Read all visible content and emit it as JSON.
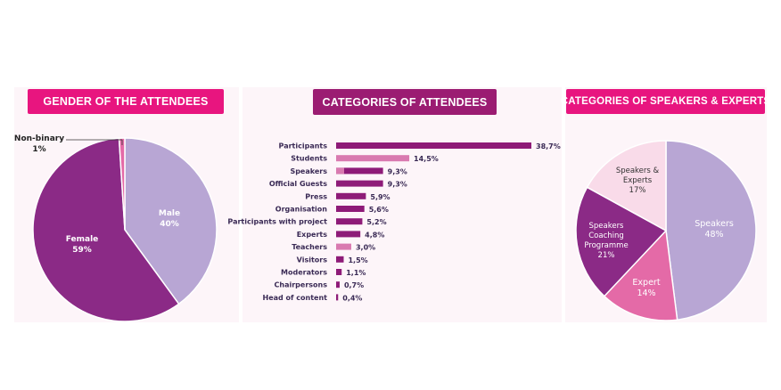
{
  "colors": {
    "pink": "#e8157f",
    "purple": "#9b1c72",
    "dark_purple": "#8b2a86",
    "lavender": "#b8a6d4",
    "light_pink": "#f9dbe9",
    "mid_pink": "#e46aa7",
    "bar_purple": "#8e1b78",
    "bar_pink": "#d97ab0"
  },
  "chart_data": [
    {
      "type": "pie",
      "title": "GENDER OF THE ATTENDEES",
      "slices": [
        {
          "label": "Male",
          "value": 40,
          "display": "40%",
          "color": "#b8a6d4"
        },
        {
          "label": "Female",
          "value": 59,
          "display": "59%",
          "color": "#8b2a86"
        },
        {
          "label": "Non-binary",
          "value": 1,
          "display": "1%",
          "color": "#e46aa7"
        }
      ]
    },
    {
      "type": "bar",
      "orientation": "horizontal",
      "title": "CATEGORIES OF ATTENDEES",
      "categories": [
        "Participants",
        "Students",
        "Speakers",
        "Official Guests",
        "Press",
        "Organisation",
        "Participants with project",
        "Experts",
        "Teachers",
        "Visitors",
        "Moderators",
        "Chairpersons",
        "Head of content"
      ],
      "values": [
        38.7,
        14.5,
        9.3,
        9.3,
        5.9,
        5.6,
        5.2,
        4.8,
        3.0,
        1.5,
        1.1,
        0.7,
        0.4
      ],
      "value_labels": [
        "38,7%",
        "14,5%",
        "9,3%",
        "9,3%",
        "5,9%",
        "5,6%",
        "5,2%",
        "4,8%",
        "3,0%",
        "1,5%",
        "1,1%",
        "0,7%",
        "0,4%"
      ],
      "colors": [
        "#8e1b78",
        "#d97ab0",
        "#8e1b78",
        "#8e1b78",
        "#8e1b78",
        "#8e1b78",
        "#8e1b78",
        "#8e1b78",
        "#d97ab0",
        "#8e1b78",
        "#8e1b78",
        "#8e1b78",
        "#8e1b78"
      ]
    },
    {
      "type": "pie",
      "title": "CATEGORIES OF SPEAKERS & EXPERTS",
      "slices": [
        {
          "label": "Speakers",
          "value": 48,
          "display": "48%",
          "color": "#b8a6d4"
        },
        {
          "label": "Expert",
          "value": 14,
          "display": "14%",
          "color": "#e46aa7"
        },
        {
          "label": "Speakers Coaching Programme",
          "value": 21,
          "display": "21%",
          "color": "#8b2a86"
        },
        {
          "label": "Speakers & Experts",
          "value": 17,
          "display": "17%",
          "color": "#f9dbe9"
        }
      ]
    }
  ]
}
